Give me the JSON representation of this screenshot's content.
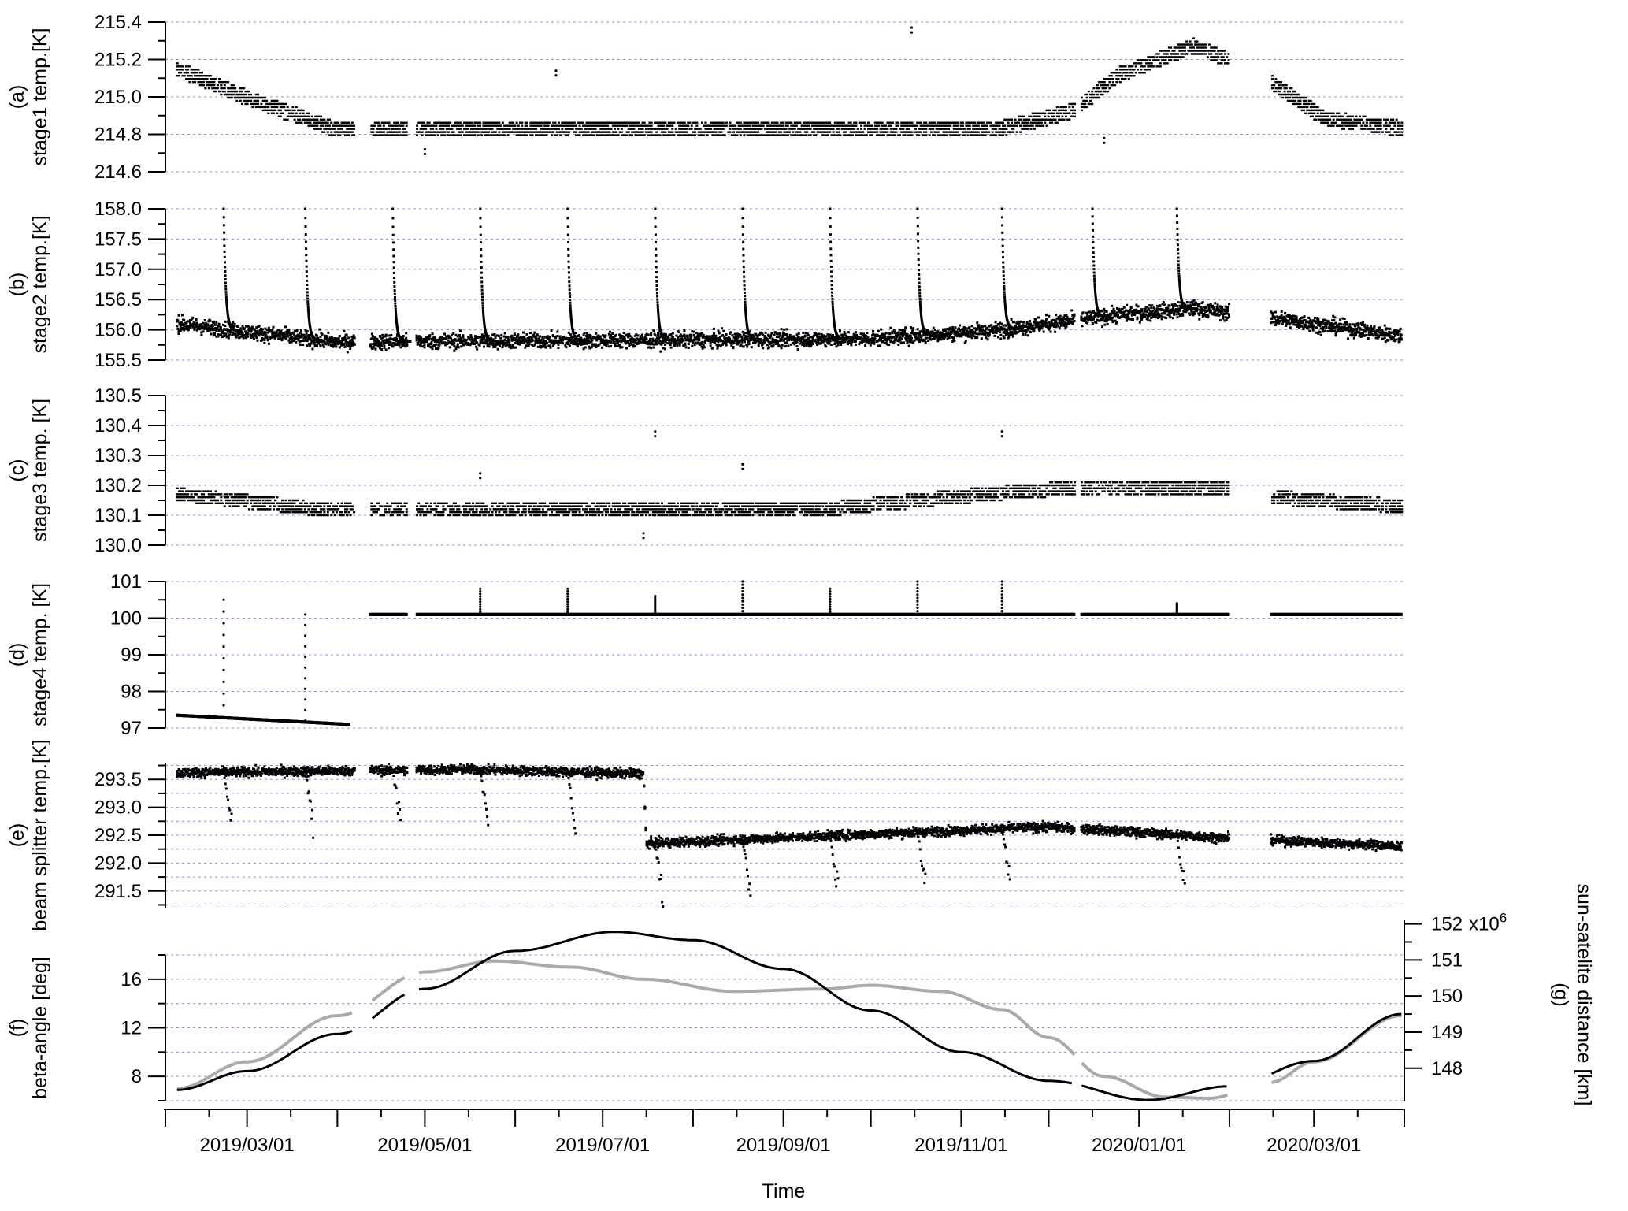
{
  "chart_data": {
    "type": "scatter",
    "xlabel": "Time",
    "x_range": [
      "2019-02-01",
      "2020-04-01"
    ],
    "x_tick_labels": [
      "2019/03/01",
      "2019/05/01",
      "2019/07/01",
      "2019/09/01",
      "2019/11/01",
      "2020/01/01",
      "2020/03/01"
    ],
    "grid": true,
    "data_gaps": [
      [
        "2019-04-07",
        "2019-04-12"
      ],
      [
        "2019-04-25",
        "2019-04-28"
      ],
      [
        "2019-12-10",
        "2019-12-12"
      ],
      [
        "2020-02-01",
        "2020-02-15"
      ]
    ],
    "panels": [
      {
        "id": "a",
        "ylabel": "(a)\nstage1 temp.[K]",
        "ylim": [
          214.6,
          215.4
        ],
        "yticks": [
          "214.6",
          "214.8",
          "215.0",
          "215.2",
          "215.4"
        ],
        "series": [
          {
            "style": "quantized",
            "color": "#000000",
            "levels": [
              "2019-02-05",
              215.15,
              "2019-02-28",
              215.0,
              "2019-03-31",
              214.83,
              "2019-11-15",
              214.83,
              "2019-12-10",
              214.93,
              "2019-12-25",
              215.12,
              "2020-01-20",
              215.27,
              "2020-02-01",
              215.2,
              "2020-02-15",
              215.08,
              "2020-03-05",
              214.88,
              "2020-03-31",
              214.83
            ],
            "spread": 0.05,
            "outliers": [
              [
                "2019-10-15",
                215.37
              ],
              [
                "2019-06-15",
                215.14
              ],
              [
                "2019-12-20",
                214.78
              ],
              [
                "2019-05-01",
                214.72
              ]
            ]
          }
        ]
      },
      {
        "id": "b",
        "ylabel": "(b)\nstage2 temp.[K]",
        "ylim": [
          155.5,
          158.0
        ],
        "yticks": [
          "155.5",
          "156.0",
          "156.5",
          "157.0",
          "157.5",
          "158.0"
        ],
        "series": [
          {
            "style": "noisy",
            "color": "#000000",
            "levels": [
              "2019-02-05",
              156.1,
              "2019-03-31",
              155.8,
              "2019-09-30",
              155.85,
              "2019-11-15",
              156.0,
              "2019-12-25",
              156.25,
              "2020-01-20",
              156.35,
              "2020-02-01",
              156.28,
              "2020-02-15",
              156.2,
              "2020-03-31",
              155.9
            ],
            "noise": 0.18,
            "spikes": [
              "2019-02-21",
              "2019-03-21",
              "2019-04-20",
              "2019-05-20",
              "2019-06-19",
              "2019-07-19",
              "2019-08-18",
              "2019-09-17",
              "2019-10-17",
              "2019-11-15",
              "2019-12-16",
              "2020-01-14"
            ],
            "spike_peak": 158.0,
            "spike_decay_days": 1.5
          }
        ]
      },
      {
        "id": "c",
        "ylabel": "(c)\nstage3 temp. [K]",
        "ylim": [
          130.0,
          130.5
        ],
        "yticks": [
          "130.0",
          "130.1",
          "130.2",
          "130.3",
          "130.4",
          "130.5"
        ],
        "series": [
          {
            "style": "quantized",
            "color": "#000000",
            "levels": [
              "2019-02-05",
              130.17,
              "2019-03-31",
              130.115,
              "2019-09-15",
              130.12,
              "2019-11-15",
              130.175,
              "2019-12-15",
              130.195,
              "2020-01-31",
              130.19,
              "2020-02-15",
              130.16,
              "2020-03-31",
              130.13
            ],
            "spread": 0.025,
            "outliers": [
              [
                "2019-07-19",
                130.38
              ],
              [
                "2019-11-15",
                130.38
              ],
              [
                "2019-08-18",
                130.27
              ],
              [
                "2019-05-20",
                130.24
              ],
              [
                "2019-07-15",
                130.04
              ]
            ]
          }
        ]
      },
      {
        "id": "d",
        "ylabel": "(d)\nstage4 temp. [K]",
        "ylim": [
          97,
          101
        ],
        "yticks": [
          "97",
          "98",
          "99",
          "100",
          "101"
        ],
        "series": [
          {
            "style": "line-dots",
            "color": "#000000",
            "segments": [
              {
                "start": "2019-02-05",
                "end": "2019-04-05",
                "y0": 97.35,
                "y1": 97.1
              },
              {
                "start": "2019-04-12",
                "end": "2020-03-31",
                "y0": 100.1,
                "y1": 100.1
              }
            ],
            "vertical_events": [
              [
                "2019-02-21",
                97.3,
                100.5
              ],
              [
                "2019-03-21",
                97.2,
                100.1
              ],
              [
                "2019-05-20",
                100.1,
                100.8
              ],
              [
                "2019-06-19",
                100.1,
                100.8
              ],
              [
                "2019-07-19",
                100.1,
                100.6
              ],
              [
                "2019-08-18",
                100.1,
                101.0
              ],
              [
                "2019-09-17",
                100.1,
                100.8
              ],
              [
                "2019-10-17",
                100.1,
                101.0
              ],
              [
                "2019-11-15",
                100.1,
                101.0
              ],
              [
                "2020-01-14",
                100.1,
                100.4
              ]
            ]
          }
        ]
      },
      {
        "id": "e",
        "ylabel": "(e)\nbeam splitter temp.[K]",
        "ylim": [
          291.2,
          293.8
        ],
        "yticks": [
          "291.5",
          "292.0",
          "292.5",
          "293.0",
          "293.5"
        ],
        "series": [
          {
            "style": "noisy",
            "color": "#000000",
            "levels": [
              "2019-02-05",
              293.62,
              "2019-05-15",
              293.68,
              "2019-07-15",
              293.6,
              "2019-07-16",
              292.35,
              "2019-10-15",
              292.55,
              "2019-12-01",
              292.65,
              "2020-01-31",
              292.45,
              "2020-03-31",
              292.3
            ],
            "noise": 0.12,
            "spikes": [
              "2019-02-21",
              "2019-03-21",
              "2019-04-20",
              "2019-05-20",
              "2019-06-19",
              "2019-07-19",
              "2019-08-18",
              "2019-09-17",
              "2019-10-17",
              "2019-11-15",
              "2020-01-14"
            ],
            "spike_depth": 1.2,
            "spike_dir": -1
          }
        ]
      },
      {
        "id": "f",
        "ylabel": "(f)\nbeta-angle [deg]",
        "ylim": [
          6,
          18
        ],
        "yticks": [
          "8",
          "12",
          "16"
        ],
        "right_ylabel": "(g)\nsun-satelite distance [km]",
        "right_ylim": [
          147.1,
          152.1
        ],
        "right_yticks": [
          "148",
          "149",
          "150",
          "151",
          "152"
        ],
        "right_exponent": "x10",
        "right_exponent_power": "6",
        "series": [
          {
            "name": "beta-angle",
            "axis": "left",
            "style": "curve",
            "color": "#aaaaaa",
            "points": [
              [
                "2019-02-05",
                7.0
              ],
              [
                "2019-03-01",
                9.2
              ],
              [
                "2019-04-01",
                13.0
              ],
              [
                "2019-05-01",
                16.6
              ],
              [
                "2019-05-25",
                17.5
              ],
              [
                "2019-06-20",
                17.0
              ],
              [
                "2019-07-15",
                16.0
              ],
              [
                "2019-08-15",
                15.0
              ],
              [
                "2019-09-15",
                15.2
              ],
              [
                "2019-10-01",
                15.5
              ],
              [
                "2019-10-25",
                15.0
              ],
              [
                "2019-11-15",
                13.5
              ],
              [
                "2019-12-01",
                11.2
              ],
              [
                "2019-12-20",
                8.0
              ],
              [
                "2020-01-10",
                6.3
              ],
              [
                "2020-01-25",
                6.2
              ],
              [
                "2020-02-15",
                7.5
              ],
              [
                "2020-03-01",
                9.2
              ],
              [
                "2020-03-31",
                13.0
              ]
            ]
          },
          {
            "name": "sun-satelite distance",
            "axis": "right",
            "style": "curve",
            "color": "#000000",
            "points": [
              [
                "2019-02-05",
                147.4
              ],
              [
                "2019-03-01",
                147.92
              ],
              [
                "2019-04-01",
                148.95
              ],
              [
                "2019-05-01",
                150.2
              ],
              [
                "2019-06-01",
                151.25
              ],
              [
                "2019-07-05",
                151.78
              ],
              [
                "2019-08-01",
                151.55
              ],
              [
                "2019-09-01",
                150.75
              ],
              [
                "2019-10-01",
                149.6
              ],
              [
                "2019-11-01",
                148.45
              ],
              [
                "2019-12-01",
                147.65
              ],
              [
                "2020-01-04",
                147.12
              ],
              [
                "2020-02-01",
                147.5
              ],
              [
                "2020-03-01",
                148.2
              ],
              [
                "2020-03-31",
                149.5
              ]
            ]
          }
        ]
      }
    ]
  }
}
